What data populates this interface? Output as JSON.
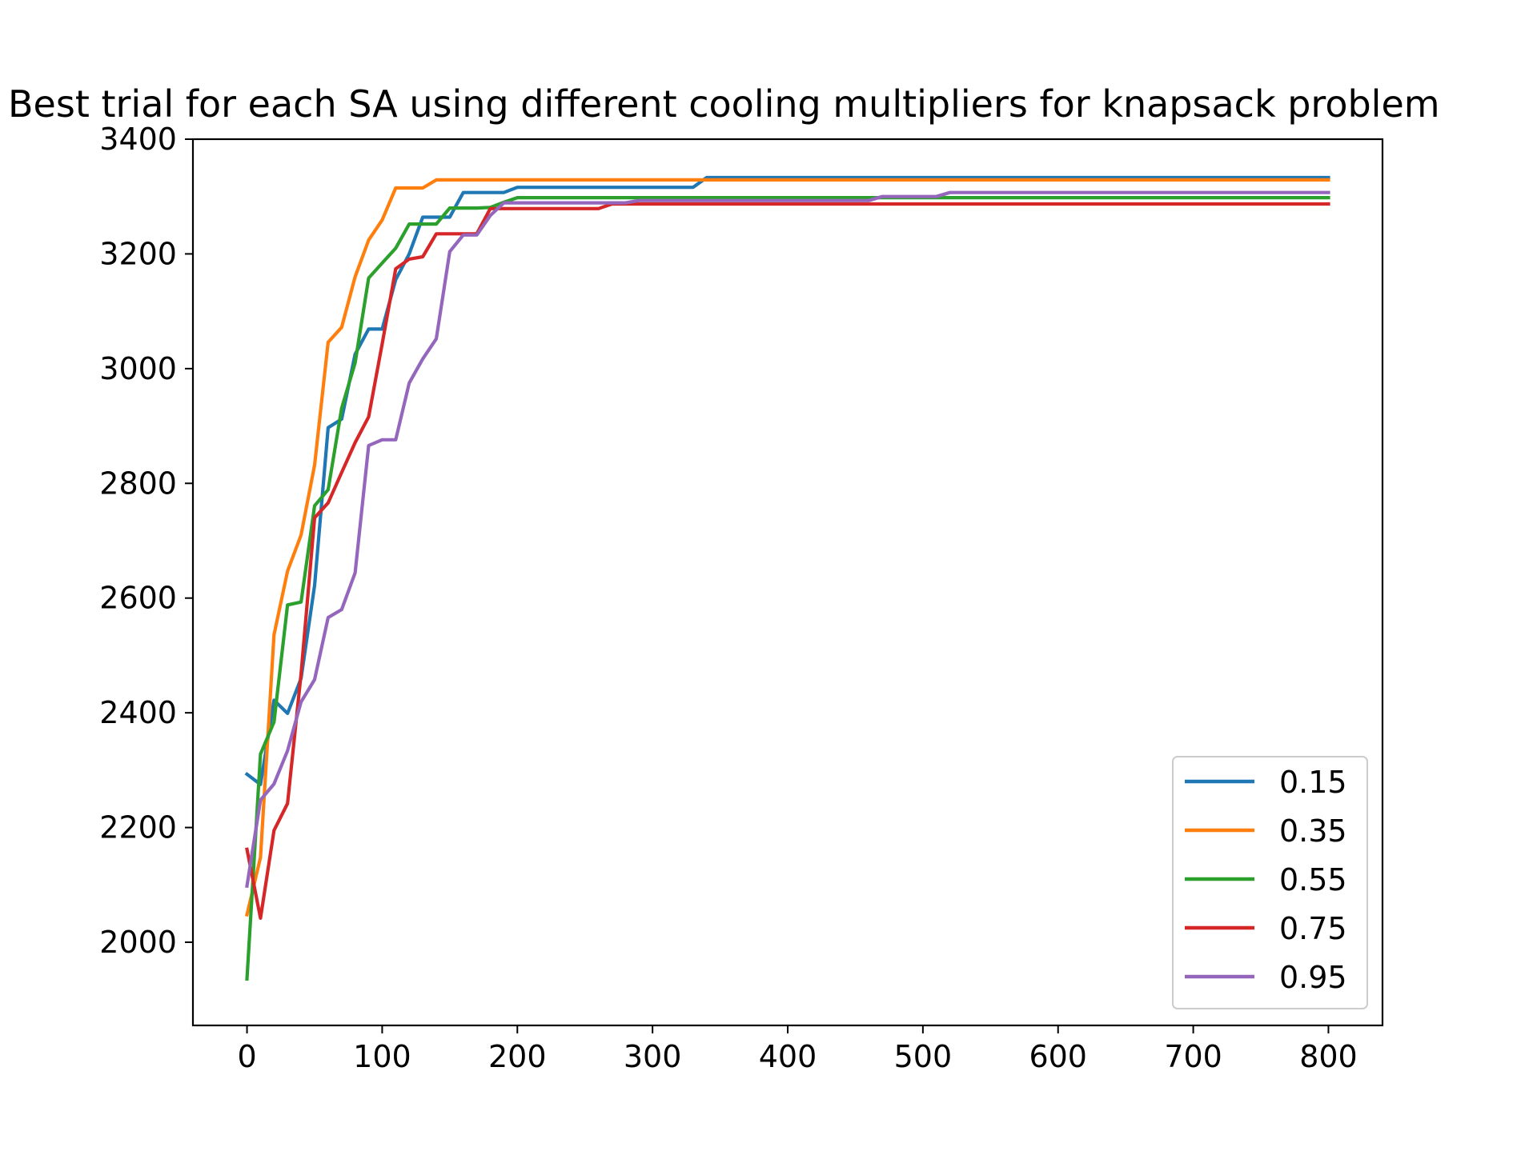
{
  "chart_data": {
    "type": "line",
    "title": "Best trial for each SA using different cooling multipliers for knapsack problem",
    "xlabel": "",
    "ylabel": "",
    "xlim": [
      -40,
      840
    ],
    "ylim": [
      1855,
      3400
    ],
    "xticks": [
      0,
      100,
      200,
      300,
      400,
      500,
      600,
      700,
      800
    ],
    "yticks": [
      2000,
      2200,
      2400,
      2600,
      2800,
      3000,
      3200,
      3400
    ],
    "legend_position": "lower right",
    "grid": false,
    "series": [
      {
        "name": "0.15",
        "color": "#1f77b4",
        "x": [
          0,
          10,
          20,
          30,
          40,
          50,
          60,
          70,
          80,
          90,
          100,
          110,
          120,
          130,
          140,
          150,
          160,
          170,
          180,
          190,
          200,
          330,
          340,
          800
        ],
        "y": [
          2293,
          2275,
          2422,
          2399,
          2460,
          2622,
          2897,
          2912,
          3025,
          3069,
          3069,
          3155,
          3200,
          3264,
          3264,
          3264,
          3307,
          3307,
          3307,
          3307,
          3316,
          3316,
          3333,
          3333
        ]
      },
      {
        "name": "0.35",
        "color": "#ff7f0e",
        "x": [
          0,
          10,
          20,
          30,
          40,
          50,
          60,
          70,
          80,
          90,
          100,
          110,
          120,
          130,
          140,
          800
        ],
        "y": [
          2048,
          2148,
          2536,
          2647,
          2710,
          2832,
          3046,
          3072,
          3160,
          3224,
          3259,
          3315,
          3315,
          3315,
          3329,
          3329
        ]
      },
      {
        "name": "0.55",
        "color": "#2ca02c",
        "x": [
          0,
          10,
          20,
          30,
          40,
          50,
          60,
          70,
          80,
          90,
          100,
          110,
          120,
          130,
          140,
          150,
          160,
          170,
          180,
          190,
          200,
          800
        ],
        "y": [
          1936,
          2328,
          2384,
          2588,
          2593,
          2761,
          2789,
          2931,
          3010,
          3158,
          3184,
          3210,
          3252,
          3252,
          3252,
          3280,
          3280,
          3280,
          3281,
          3290,
          3298,
          3298
        ]
      },
      {
        "name": "0.75",
        "color": "#d62728",
        "x": [
          0,
          10,
          20,
          30,
          40,
          50,
          60,
          70,
          80,
          90,
          100,
          110,
          120,
          130,
          140,
          150,
          160,
          170,
          180,
          190,
          200,
          260,
          270,
          800
        ],
        "y": [
          2162,
          2042,
          2195,
          2242,
          2468,
          2740,
          2766,
          2819,
          2871,
          2916,
          3043,
          3174,
          3191,
          3195,
          3235,
          3235,
          3235,
          3235,
          3279,
          3279,
          3279,
          3279,
          3287,
          3287
        ]
      },
      {
        "name": "0.95",
        "color": "#9467bd",
        "x": [
          0,
          10,
          20,
          30,
          40,
          50,
          60,
          70,
          80,
          90,
          100,
          110,
          120,
          130,
          140,
          150,
          160,
          170,
          180,
          190,
          200,
          280,
          290,
          460,
          470,
          510,
          520,
          800
        ],
        "y": [
          2098,
          2248,
          2276,
          2334,
          2419,
          2458,
          2566,
          2580,
          2644,
          2866,
          2876,
          2876,
          2975,
          3017,
          3052,
          3204,
          3233,
          3233,
          3267,
          3289,
          3289,
          3289,
          3293,
          3293,
          3300,
          3300,
          3307,
          3307
        ]
      }
    ]
  }
}
